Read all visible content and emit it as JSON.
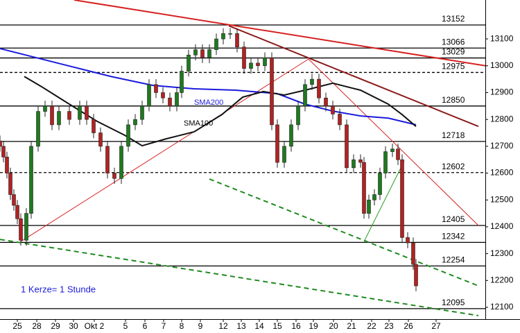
{
  "chart_data": {
    "type": "candlestick",
    "x": [
      0,
      0.5,
      1,
      1.5,
      2,
      2.5,
      3,
      3.8,
      4.5,
      5.5,
      6.5,
      7.5,
      8.5,
      10,
      11.5,
      12.5,
      13.5,
      14.5,
      15.5,
      16.5,
      17.5,
      18.5,
      19.5,
      20.5,
      21.5,
      22.5,
      23.5,
      24.5,
      25.5,
      26.2,
      27.2,
      28.2,
      29.2,
      30.2,
      31.2,
      32.2,
      33.2,
      34.2,
      35.2,
      36.2,
      37.2,
      38.2,
      39.2,
      40,
      41,
      42,
      43,
      44,
      45,
      46,
      47,
      48,
      49,
      50,
      51,
      52,
      52.5,
      53.2,
      54,
      54.8,
      55.6,
      56.6,
      57.4,
      58,
      58.8,
      59.6,
      60
    ],
    "open": [
      12720,
      12700,
      12660,
      12600,
      12520,
      12480,
      12430,
      12350,
      12450,
      12700,
      12830,
      12850,
      12780,
      12830,
      12800,
      12850,
      12800,
      12750,
      12700,
      12600,
      12580,
      12700,
      12780,
      12800,
      12850,
      12930,
      12900,
      12880,
      12850,
      12900,
      12980,
      13040,
      13060,
      13030,
      13060,
      13100,
      13120,
      13120,
      13070,
      12990,
      13010,
      13000,
      13030,
      12780,
      12640,
      12700,
      12780,
      12850,
      12930,
      12950,
      12880,
      12850,
      12820,
      12780,
      12620,
      12650,
      12640,
      12450,
      12500,
      12520,
      12600,
      12680,
      12690,
      12650,
      12360,
      12340,
      12260
    ],
    "high": [
      12740,
      12720,
      12680,
      12620,
      12540,
      12500,
      12450,
      12470,
      12720,
      12850,
      12870,
      12870,
      12850,
      12850,
      12870,
      12870,
      12820,
      12770,
      12720,
      12620,
      12720,
      12800,
      12820,
      12870,
      12950,
      12950,
      12920,
      12900,
      12920,
      13000,
      13060,
      13080,
      13080,
      13080,
      13120,
      13140,
      13140,
      13140,
      13090,
      13030,
      13030,
      13050,
      13050,
      12800,
      12720,
      12800,
      12870,
      12950,
      12970,
      12970,
      12900,
      12870,
      12840,
      12800,
      12670,
      12670,
      12660,
      12520,
      12540,
      12620,
      12700,
      12710,
      12710,
      12670,
      12380,
      12360,
      12280
    ],
    "low": [
      12680,
      12640,
      12580,
      12500,
      12460,
      12410,
      12330,
      12330,
      12430,
      12680,
      12810,
      12760,
      12760,
      12780,
      12780,
      12780,
      12730,
      12680,
      12580,
      12560,
      12560,
      12680,
      12760,
      12780,
      12830,
      12880,
      12860,
      12830,
      12830,
      12880,
      12960,
      13020,
      13010,
      13010,
      13040,
      13080,
      13100,
      13050,
      12970,
      12970,
      12980,
      12980,
      12760,
      12620,
      12620,
      12680,
      12760,
      12830,
      12910,
      12860,
      12830,
      12800,
      12760,
      12600,
      12600,
      12620,
      12430,
      12430,
      12480,
      12500,
      12580,
      12660,
      12630,
      12340,
      12320,
      12240,
      12160
    ],
    "close": [
      12700,
      12660,
      12600,
      12520,
      12480,
      12430,
      12350,
      12450,
      12700,
      12830,
      12850,
      12780,
      12830,
      12800,
      12850,
      12800,
      12750,
      12700,
      12600,
      12580,
      12700,
      12780,
      12800,
      12850,
      12930,
      12900,
      12880,
      12850,
      12900,
      12980,
      13040,
      13060,
      13030,
      13060,
      13100,
      13120,
      13120,
      13070,
      12990,
      13010,
      13000,
      13030,
      12780,
      12640,
      12700,
      12780,
      12850,
      12930,
      12950,
      12880,
      12850,
      12820,
      12780,
      12620,
      12650,
      12640,
      12450,
      12500,
      12520,
      12600,
      12680,
      12690,
      12650,
      12360,
      12340,
      12260,
      12180
    ],
    "up_color": "#1f7a1f",
    "down_color": "#b22222",
    "xlim": [
      0,
      70
    ],
    "ylim": [
      12056,
      13245
    ],
    "yticks": [
      12100,
      12200,
      12300,
      12400,
      12500,
      12600,
      12700,
      12800,
      12900,
      13000,
      13100
    ],
    "xticks": [
      {
        "value": 2.5,
        "label": "25"
      },
      {
        "value": 5.3,
        "label": "28"
      },
      {
        "value": 8,
        "label": "29"
      },
      {
        "value": 10.6,
        "label": "30"
      },
      {
        "value": 13.6,
        "label": "Okt 2"
      },
      {
        "value": 18.1,
        "label": "5"
      },
      {
        "value": 20.9,
        "label": "6"
      },
      {
        "value": 23.6,
        "label": "7"
      },
      {
        "value": 26.2,
        "label": "8"
      },
      {
        "value": 28.9,
        "label": "9"
      },
      {
        "value": 32.2,
        "label": "12"
      },
      {
        "value": 34.8,
        "label": "13"
      },
      {
        "value": 37.4,
        "label": "14"
      },
      {
        "value": 40,
        "label": "15"
      },
      {
        "value": 42.7,
        "label": "16"
      },
      {
        "value": 45.2,
        "label": "19"
      },
      {
        "value": 48.1,
        "label": "20"
      },
      {
        "value": 50.7,
        "label": "21"
      },
      {
        "value": 53.6,
        "label": "22"
      },
      {
        "value": 56.1,
        "label": "23"
      },
      {
        "value": 58.9,
        "label": "26"
      },
      {
        "value": 62.9,
        "label": "27"
      }
    ],
    "levels": [
      13152,
      13066,
      13029,
      12975,
      12850,
      12718,
      12602,
      12405,
      12342,
      12254,
      12095
    ],
    "level_styles": [
      "solid",
      "solid",
      "solid",
      "dashed",
      "solid",
      "solid",
      "dashed",
      "solid",
      "solid",
      "solid",
      "solid"
    ],
    "series": [
      {
        "name": "SMA200",
        "color": "#1a1adc",
        "x": [
          0,
          4,
          10,
          16,
          22,
          28,
          34,
          40,
          44,
          48,
          52,
          56,
          60
        ],
        "values": [
          13064,
          13038,
          12999,
          12960,
          12927,
          12914,
          12909,
          12896,
          12857,
          12831,
          12813,
          12805,
          12780
        ]
      },
      {
        "name": "SMA100",
        "color": "#111111",
        "x": [
          3.5,
          6,
          10,
          14,
          18,
          20.5,
          24,
          28,
          32,
          35,
          38,
          41,
          44,
          48,
          52,
          56,
          58,
          60
        ],
        "values": [
          12960,
          12922,
          12857,
          12793,
          12741,
          12702,
          12728,
          12754,
          12818,
          12883,
          12904,
          12891,
          12909,
          12935,
          12909,
          12857,
          12818,
          12774
        ]
      }
    ],
    "trend_lines": [
      {
        "x": [
          10.7,
          70
        ],
        "y": [
          13245,
          13000
        ],
        "color": "#d62020",
        "width": 2,
        "style": "solid"
      },
      {
        "x": [
          33,
          69
        ],
        "y": [
          13149,
          12774
        ],
        "color": "#8b1a1a",
        "width": 2,
        "style": "solid"
      },
      {
        "x": [
          3,
          44.5
        ],
        "y": [
          12345,
          13025
        ],
        "color": "#d62020",
        "width": 1,
        "style": "solid"
      },
      {
        "x": [
          44.5,
          69
        ],
        "y": [
          13025,
          12405
        ],
        "color": "#d62020",
        "width": 1,
        "style": "solid"
      },
      {
        "x": [
          52.5,
          58.3
        ],
        "y": [
          12345,
          12645
        ],
        "color": "#1f9a1f",
        "width": 1,
        "style": "solid"
      },
      {
        "x": [
          30.2,
          69
        ],
        "y": [
          12578,
          12180
        ],
        "color": "#1f8a1f",
        "width": 2,
        "style": "dashed"
      },
      {
        "x": [
          0,
          69
        ],
        "y": [
          12353,
          12069
        ],
        "color": "#1f8a1f",
        "width": 2,
        "style": "dashed"
      }
    ],
    "note": "1 Kerze= 1 Stunde"
  }
}
